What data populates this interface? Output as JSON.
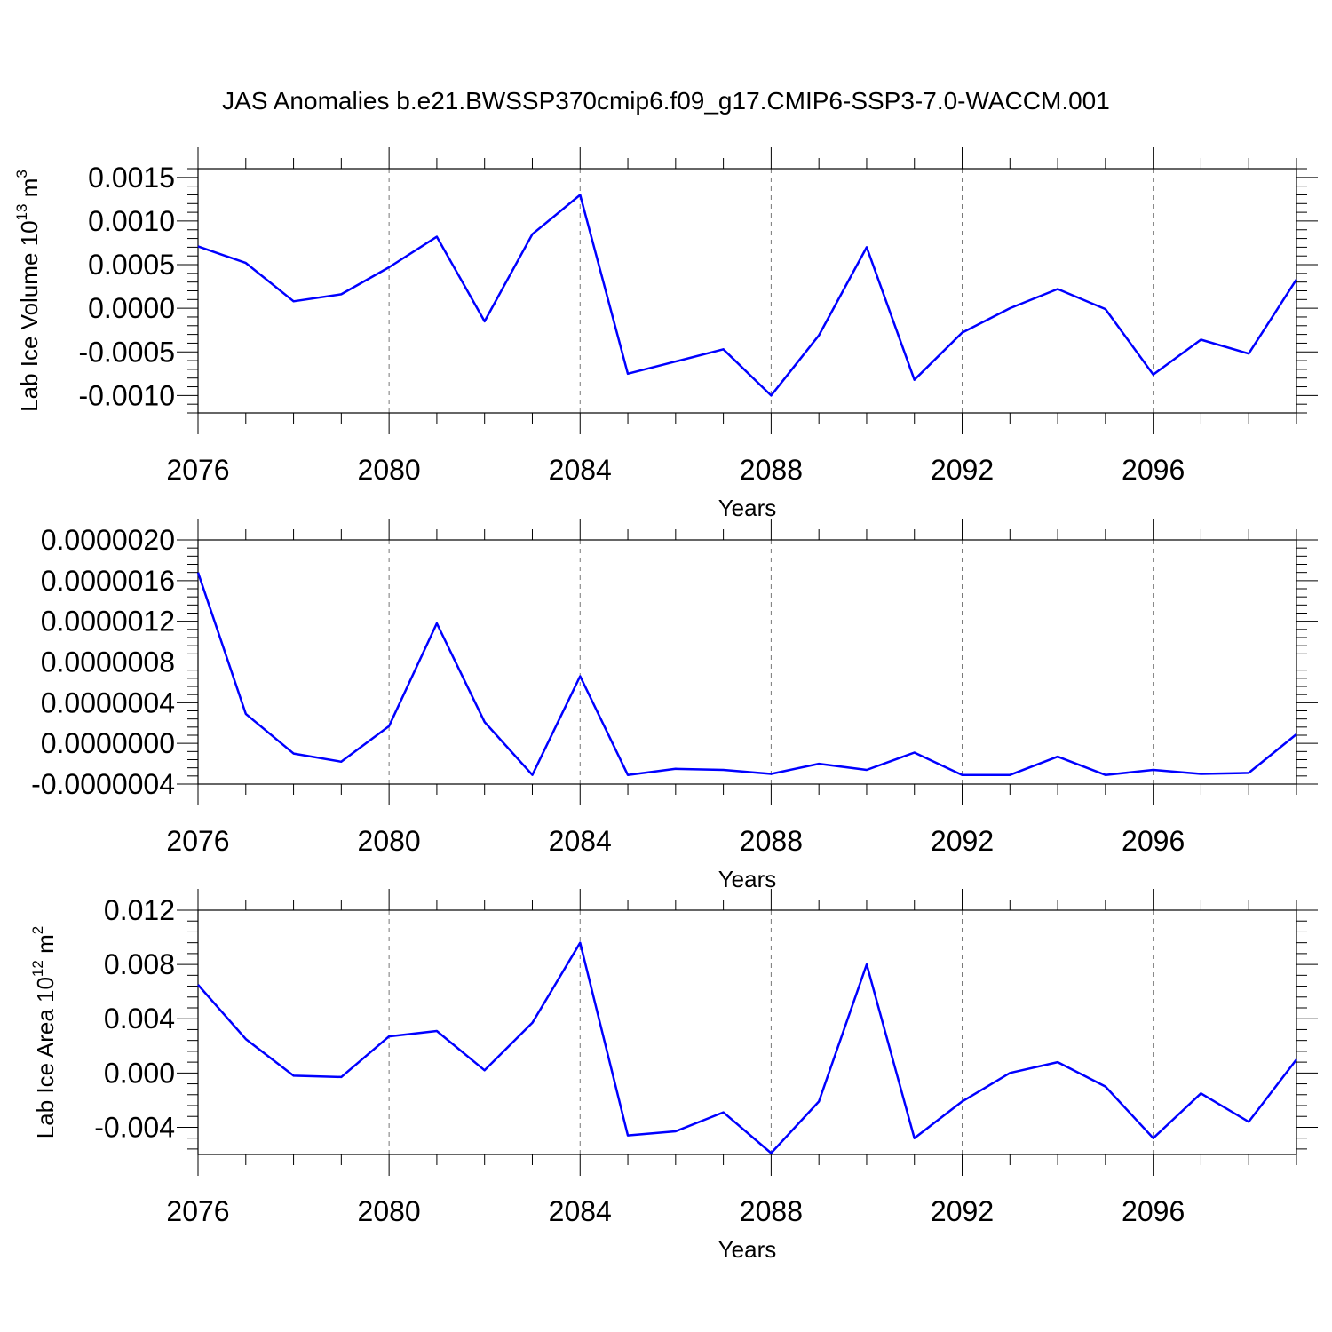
{
  "title": "JAS Anomalies b.e21.BWSSP370cmip6.f09_g17.CMIP6-SSP3-7.0-WACCM.001",
  "line_color": "#0000ff",
  "chart_data": [
    {
      "type": "line",
      "xlabel": "Years",
      "ylabel": {
        "main": "Lab Ice Volume 10",
        "sup": "13",
        "unit": " m",
        "unit_sup": "3"
      },
      "xlim": [
        2076,
        2099
      ],
      "ylim": [
        -0.0012,
        0.0016
      ],
      "x_ticks": [
        "2076",
        "2080",
        "2084",
        "2088",
        "2092",
        "2096"
      ],
      "y_ticks": [
        {
          "value": 0.0015,
          "label": "0.0015"
        },
        {
          "value": 0.001,
          "label": "0.0010"
        },
        {
          "value": 0.0005,
          "label": "0.0005"
        },
        {
          "value": 0.0,
          "label": "0.0000"
        },
        {
          "value": -0.0005,
          "label": "-0.0005"
        },
        {
          "value": -0.001,
          "label": "-0.0010"
        }
      ],
      "x": [
        2076,
        2077,
        2078,
        2079,
        2080,
        2081,
        2082,
        2083,
        2084,
        2085,
        2086,
        2087,
        2088,
        2089,
        2090,
        2091,
        2092,
        2093,
        2094,
        2095,
        2096,
        2097,
        2098,
        2099
      ],
      "values": [
        0.00071,
        0.00052,
        8e-05,
        0.00016,
        0.00047,
        0.00082,
        -0.00015,
        0.00085,
        0.0013,
        -0.00075,
        -0.00061,
        -0.00047,
        -0.001,
        -0.00031,
        0.0007,
        -0.00082,
        -0.00028,
        0.0,
        0.00022,
        -1e-05,
        -0.00076,
        -0.00036,
        -0.00052,
        0.00033
      ]
    },
    {
      "type": "line",
      "xlabel": "Years",
      "ylabel": null,
      "xlim": [
        2076,
        2099
      ],
      "ylim": [
        -4e-07,
        2e-06
      ],
      "x_ticks": [
        "2076",
        "2080",
        "2084",
        "2088",
        "2092",
        "2096"
      ],
      "y_ticks": [
        {
          "value": 2e-06,
          "label": "0.0000020"
        },
        {
          "value": 1.6e-06,
          "label": "0.0000016"
        },
        {
          "value": 1.2e-06,
          "label": "0.0000012"
        },
        {
          "value": 8e-07,
          "label": "0.0000008"
        },
        {
          "value": 4e-07,
          "label": "0.0000004"
        },
        {
          "value": 0.0,
          "label": "0.0000000"
        },
        {
          "value": -4e-07,
          "label": "-0.0000004"
        }
      ],
      "x": [
        2076,
        2077,
        2078,
        2079,
        2080,
        2081,
        2082,
        2083,
        2084,
        2085,
        2086,
        2087,
        2088,
        2089,
        2090,
        2091,
        2092,
        2093,
        2094,
        2095,
        2096,
        2097,
        2098,
        2099
      ],
      "values": [
        1.68e-06,
        2.9e-07,
        -1e-07,
        -1.8e-07,
        1.7e-07,
        1.18e-06,
        2.1e-07,
        -3.1e-07,
        6.6e-07,
        -3.1e-07,
        -2.5e-07,
        -2.6e-07,
        -3e-07,
        -2e-07,
        -2.6e-07,
        -9e-08,
        -3.1e-07,
        -3.1e-07,
        -1.3e-07,
        -3.1e-07,
        -2.6e-07,
        -3e-07,
        -2.9e-07,
        9e-08
      ]
    },
    {
      "type": "line",
      "xlabel": "Years",
      "ylabel": {
        "main": "Lab Ice Area 10",
        "sup": "12",
        "unit": " m",
        "unit_sup": "2"
      },
      "xlim": [
        2076,
        2099
      ],
      "ylim": [
        -0.006,
        0.012
      ],
      "x_ticks": [
        "2076",
        "2080",
        "2084",
        "2088",
        "2092",
        "2096"
      ],
      "y_ticks": [
        {
          "value": 0.012,
          "label": "0.012"
        },
        {
          "value": 0.008,
          "label": "0.008"
        },
        {
          "value": 0.004,
          "label": "0.004"
        },
        {
          "value": 0.0,
          "label": "0.000"
        },
        {
          "value": -0.004,
          "label": "-0.004"
        }
      ],
      "x": [
        2076,
        2077,
        2078,
        2079,
        2080,
        2081,
        2082,
        2083,
        2084,
        2085,
        2086,
        2087,
        2088,
        2089,
        2090,
        2091,
        2092,
        2093,
        2094,
        2095,
        2096,
        2097,
        2098,
        2099
      ],
      "values": [
        0.0065,
        0.0025,
        -0.0002,
        -0.0003,
        0.0027,
        0.0031,
        0.0002,
        0.0037,
        0.0096,
        -0.0046,
        -0.0043,
        -0.0029,
        -0.0059,
        -0.0021,
        0.008,
        -0.0048,
        -0.0021,
        0.0,
        0.0008,
        -0.001,
        -0.0048,
        -0.0015,
        -0.0036,
        0.001
      ]
    }
  ]
}
